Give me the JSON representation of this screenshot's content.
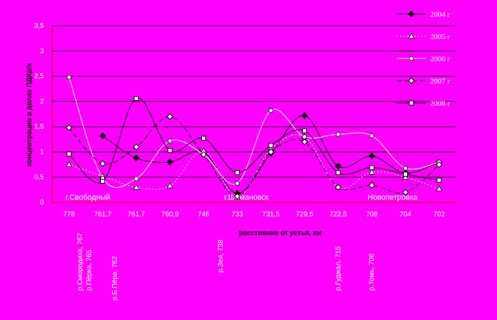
{
  "chart_data": {
    "type": "line",
    "ylabel": "концентрация в долях ПДКр/х",
    "xlabel": "расстояние от устья, км",
    "ylim": [
      0,
      3.5
    ],
    "yticks": [
      "0",
      "0,5",
      "1",
      "1,5",
      "2",
      "2,5",
      "3",
      "3,5"
    ],
    "categories": [
      "778",
      "761,7",
      "761,7",
      "760,9",
      "746",
      "733",
      "731,5",
      "729,5",
      "722,5",
      "708",
      "704",
      "702"
    ],
    "series": [
      {
        "name": "2004 г",
        "color": "#000000",
        "dash": "",
        "marker": "diamond",
        "fill": "#000000",
        "values": [
          null,
          1.32,
          0.88,
          0.8,
          1.0,
          0.18,
          0.97,
          1.72,
          0.72,
          0.92,
          0.58,
          0.8
        ]
      },
      {
        "name": "2005 г",
        "color": "#ffffff",
        "dash": "2,3",
        "marker": "triangle",
        "fill": "#ffffff",
        "values": [
          0.75,
          0.52,
          0.3,
          0.33,
          1.02,
          0.1,
          1.05,
          1.3,
          0.3,
          0.6,
          0.5,
          0.27
        ]
      },
      {
        "name": "2006 г",
        "color": "#ffffff",
        "dash": "",
        "marker": "circle",
        "fill": "#ffffff",
        "values": [
          2.48,
          0.48,
          0.47,
          1.22,
          0.95,
          0.38,
          1.82,
          1.3,
          1.35,
          1.32,
          0.68,
          0.8
        ]
      },
      {
        "name": "2007 г",
        "color": "#000000",
        "dash": "7,4",
        "marker": "diamond",
        "fill": "#ffffff",
        "values": [
          1.48,
          0.77,
          1.1,
          1.7,
          0.95,
          0.12,
          1.0,
          1.2,
          0.3,
          0.34,
          0.2,
          0.75
        ]
      },
      {
        "name": "2008 г",
        "color": "#000000",
        "dash": "",
        "marker": "square",
        "fill": "#ffffff",
        "values": [
          0.96,
          0.42,
          2.06,
          1.03,
          1.27,
          0.59,
          1.13,
          1.42,
          0.59,
          0.69,
          0.56,
          0.44
        ]
      }
    ],
    "annotations": {
      "towns": [
        "г.Свободный",
        "г.Шимановск",
        "Новопетровка"
      ],
      "rivers": [
        "р.Смородиха, 767",
        "р.Пёрка, 765",
        "р.Б.Пёра, 762",
        "р.Зея, 738",
        "р.Гуджал, 715",
        "р.Томь, 706"
      ]
    },
    "grid": true,
    "legend": "top-right"
  }
}
